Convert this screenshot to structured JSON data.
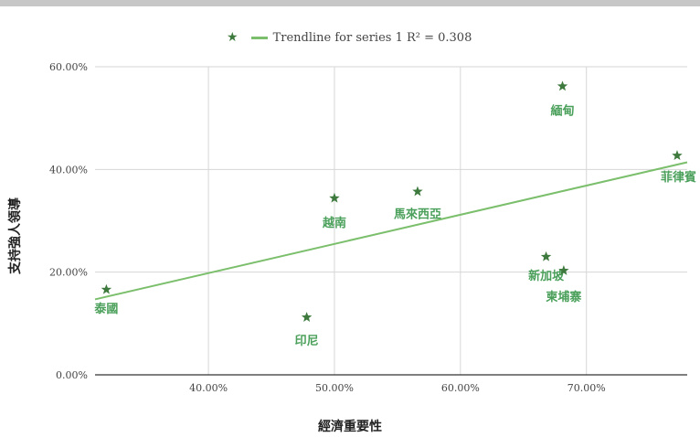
{
  "chart_data": {
    "type": "scatter",
    "xlabel": "經濟重要性",
    "ylabel": "支持強人領導",
    "xlim": [
      0.31,
      0.78
    ],
    "ylim": [
      0.0,
      0.6
    ],
    "x_ticks": [
      0.4,
      0.5,
      0.6,
      0.7
    ],
    "x_tick_labels": [
      "40.00%",
      "50.00%",
      "60.00%",
      "70.00%"
    ],
    "y_ticks": [
      0.0,
      0.2,
      0.4,
      0.6
    ],
    "y_tick_labels": [
      "0.00%",
      "20.00%",
      "40.00%",
      "60.00%"
    ],
    "grid": true,
    "legend_position": "top",
    "legend": {
      "series": "",
      "trendline": "Trendline for series 1 R² = 0.308"
    },
    "marker_color": "#3e7a3e",
    "label_color": "#4aa05a",
    "trend_color": "#7bbf6c",
    "points": [
      {
        "label": "泰國",
        "x": 0.319,
        "y": 0.166
      },
      {
        "label": "印尼",
        "x": 0.478,
        "y": 0.112
      },
      {
        "label": "越南",
        "x": 0.5,
        "y": 0.344
      },
      {
        "label": "馬來西亞",
        "x": 0.566,
        "y": 0.357
      },
      {
        "label": "緬甸",
        "x": 0.681,
        "y": 0.562
      },
      {
        "label": "新加坡",
        "x": 0.668,
        "y": 0.23
      },
      {
        "label": "柬埔寨",
        "x": 0.682,
        "y": 0.203
      },
      {
        "label": "菲律賓",
        "x": 0.772,
        "y": 0.427
      }
    ],
    "trendline": {
      "x": [
        0.31,
        0.78
      ],
      "y": [
        0.147,
        0.414
      ]
    }
  }
}
